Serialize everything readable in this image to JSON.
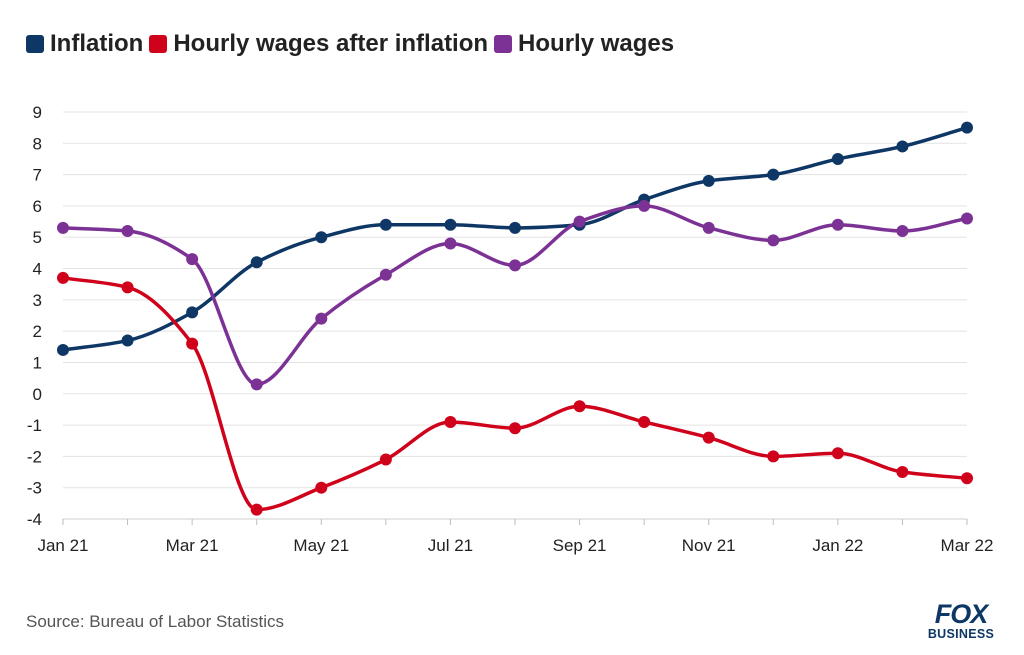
{
  "chart_data": {
    "type": "line",
    "categories": [
      "Jan 21",
      "Feb 21",
      "Mar 21",
      "Apr 21",
      "May 21",
      "Jun 21",
      "Jul 21",
      "Aug 21",
      "Sep 21",
      "Oct 21",
      "Nov 21",
      "Dec 21",
      "Jan 22",
      "Feb 22",
      "Mar 22"
    ],
    "x_tick_labels": [
      "Jan 21",
      "",
      "Mar 21",
      "",
      "May 21",
      "",
      "Jul 21",
      "",
      "Sep 21",
      "",
      "Nov 21",
      "",
      "Jan 22",
      "",
      "Mar 22"
    ],
    "series": [
      {
        "name": "Inflation",
        "color": "#0f3766",
        "values": [
          1.4,
          1.7,
          2.6,
          4.2,
          5.0,
          5.4,
          5.4,
          5.3,
          5.4,
          6.2,
          6.8,
          7.0,
          7.5,
          7.9,
          8.5
        ]
      },
      {
        "name": "Hourly wages after inflation",
        "color": "#d0021b",
        "values": [
          3.7,
          3.4,
          1.6,
          -3.7,
          -3.0,
          -2.1,
          -0.9,
          -1.1,
          -0.4,
          -0.9,
          -1.4,
          -2.0,
          -1.9,
          -2.5,
          -2.7
        ]
      },
      {
        "name": "Hourly wages",
        "color": "#7b3294",
        "values": [
          5.3,
          5.2,
          4.3,
          0.3,
          2.4,
          3.8,
          4.8,
          4.1,
          5.5,
          6.0,
          5.3,
          4.9,
          5.4,
          5.2,
          5.6
        ]
      }
    ],
    "ylim": [
      -4,
      9
    ],
    "yticks": [
      -4,
      -3,
      -2,
      -1,
      0,
      1,
      2,
      3,
      4,
      5,
      6,
      7,
      8,
      9
    ],
    "grid": true,
    "legend_position": "top-left"
  },
  "source": "Source: Bureau of Labor Statistics",
  "logo": {
    "line1": "FOX",
    "line2": "BUSINESS"
  }
}
